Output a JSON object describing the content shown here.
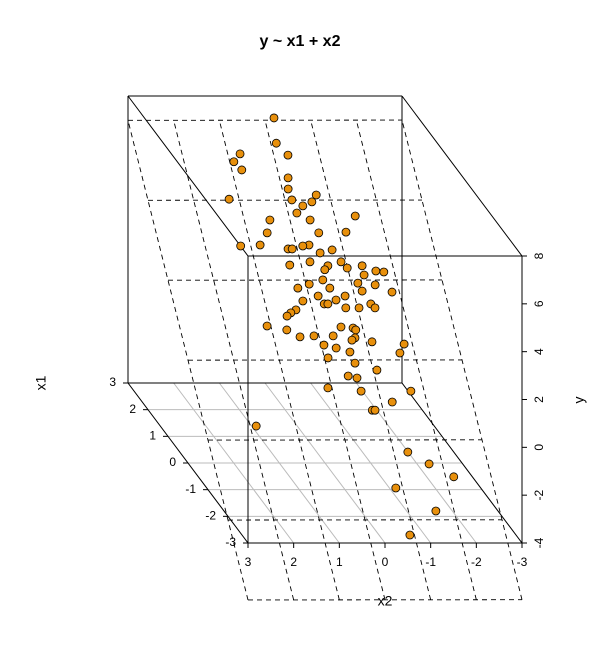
{
  "chart_data": {
    "type": "scatter3d",
    "title": "y ~ x1 + x2",
    "x_label": "x2",
    "depth_label": "x1",
    "y_label": "y",
    "xlim": [
      3,
      -3
    ],
    "xticks": [
      3,
      2,
      1,
      0,
      -1,
      -2,
      -3
    ],
    "depthlim": [
      -3,
      3
    ],
    "depthticks": [
      -3,
      -2,
      -1,
      0,
      1,
      2,
      3
    ],
    "ylim": [
      -4,
      8
    ],
    "yticks": [
      -4,
      -2,
      0,
      2,
      4,
      6,
      8
    ],
    "color": "#e8900c",
    "grid": true,
    "regression_plane": true,
    "x": [
      -0.21,
      0.73,
      0.91,
      0.78,
      -0.12,
      -0.31,
      -0.19,
      -0.13,
      1.22,
      -0.15,
      -0.71,
      -0.58,
      -0.36,
      -0.44,
      -0.19,
      0.44,
      0.57,
      0.79,
      1.22,
      0.2,
      0.11,
      -0.14,
      -0.28,
      -0.56,
      -1.16,
      -1.45,
      -0.48,
      -0.76,
      -0.58,
      -0.21,
      0.25,
      -0.49,
      -0.89,
      -0.99,
      -1.33,
      -1.32,
      -1.6,
      -1.77,
      -1.14,
      -1.51,
      -0.79,
      -1.19,
      -1.84,
      0.2,
      -0.07,
      -0.39,
      -0.5,
      -0.2,
      -0.29,
      -0.57,
      -0.37,
      -0.74,
      -1.03,
      -1.31,
      -1.38,
      0.59,
      0.49,
      0.36,
      0.16,
      1.08,
      0.67,
      0.42,
      0.11,
      -0.31,
      -0.53,
      -0.79,
      -0.84,
      -0.78,
      -0.31,
      -0.06,
      -0.59,
      -0.7,
      -1.13,
      -1.82,
      -1.68,
      -0.08,
      -0.42,
      -0.64,
      -1.08,
      0.09,
      -0.6,
      -0.62,
      -0.76,
      -0.82,
      -1.24,
      -1.71,
      1.87,
      -1.31,
      -1.71,
      -2.18,
      -0.85,
      -1.6,
      -0.9
    ],
    "depth": [
      3.03,
      2.58,
      2.48,
      2.38,
      2.71,
      2.56,
      2.28,
      2.14,
      2.01,
      2.0,
      2.06,
      1.98,
      1.93,
      1.75,
      1.84,
      1.75,
      1.59,
      1.44,
      1.43,
      1.39,
      1.39,
      1.43,
      1.44,
      1.59,
      1.6,
      1.8,
      1.34,
      1.38,
      1.18,
      1.23,
      1.19,
      1.13,
      1.23,
      1.15,
      1.18,
      1.06,
      1.11,
      1.1,
      0.96,
      0.94,
      0.8,
      0.86,
      0.85,
      0.9,
      0.95,
      1.0,
      0.9,
      0.8,
      0.7,
      0.75,
      0.7,
      0.65,
      0.65,
      0.7,
      0.65,
      0.55,
      0.59,
      0.63,
      0.74,
      0.43,
      0.38,
      0.29,
      0.3,
      0.3,
      0.41,
      0.4,
      0.38,
      0.28,
      0.15,
      0.19,
      0.1,
      0.25,
      0.23,
      0.2,
      0.09,
      0.03,
      -0.2,
      -0.04,
      -0.13,
      -0.35,
      -0.23,
      -0.39,
      -0.63,
      -0.63,
      -0.53,
      -0.39,
      -0.83,
      -1.15,
      -1.3,
      -1.46,
      -1.6,
      -1.89,
      -2.19
    ],
    "y": [
      7.05,
      6.05,
      5.83,
      5.6,
      6.35,
      6.02,
      5.38,
      5.07,
      4.79,
      4.77,
      4.91,
      4.71,
      4.6,
      4.21,
      4.4,
      4.21,
      3.85,
      3.51,
      3.48,
      3.4,
      3.4,
      3.48,
      3.51,
      3.85,
      3.87,
      4.32,
      3.29,
      3.37,
      2.93,
      3.04,
      2.95,
      2.82,
      3.04,
      2.87,
      2.93,
      2.68,
      2.79,
      2.76,
      2.45,
      2.4,
      2.09,
      2.23,
      2.2,
      2.31,
      2.42,
      2.54,
      2.31,
      2.09,
      1.87,
      1.98,
      1.87,
      1.76,
      1.76,
      1.87,
      1.76,
      1.53,
      1.62,
      1.7,
      1.95,
      1.25,
      1.14,
      0.95,
      0.98,
      0.98,
      1.23,
      1.2,
      1.14,
      0.92,
      0.64,
      0.72,
      0.53,
      0.86,
      0.81,
      0.75,
      0.5,
      0.36,
      -0.14,
      0.22,
      0.03,
      -0.47,
      -0.19,
      -0.56,
      -1.09,
      -1.09,
      -0.86,
      -0.56,
      -1.53,
      -2.26,
      -2.59,
      -2.95,
      -3.26,
      -3.9,
      -4.57
    ]
  }
}
